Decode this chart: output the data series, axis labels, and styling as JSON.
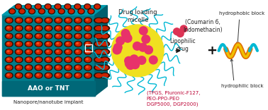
{
  "bg_color": "#ffffff",
  "implant_front_color": "#007b8a",
  "implant_top_color": "#009aac",
  "implant_side_color": "#005f6e",
  "implant_bottom_strip": "#006070",
  "pore_outer": "#2a1000",
  "pore_inner": "#cc2200",
  "pore_highlight": "#ff5522",
  "label_AAO": "AAO or TNT",
  "label_below": "Nanopore/nanotube implant",
  "label_AAO_color": "#ffffff",
  "label_below_color": "#222222",
  "micelle_label": "Drug loading\nmicelle",
  "micelle_label_color": "#222222",
  "yellow_color": "#f0e020",
  "pink_color": "#e8326a",
  "teal_color": "#00b8d4",
  "arrow_color": "#111111",
  "coumarin_label": "(Coumarin 6,\nIndomethacin)",
  "lipophilic_label": "Lipophilic\ndrug",
  "red_dot_color": "#dd3355",
  "plus_color": "#111111",
  "surfactant_label": "(TPGS, Pluronic-F127,\nPEO-PPO-PEO\nDGP5000, DGP2000)",
  "surfactant_color": "#bb0033",
  "hydrophobic_label": "hydrophobic block",
  "hydrophilic_label": "hydrophilic block",
  "label_color": "#222222",
  "orange_chain": "#e07000",
  "gold_chain": "#f0c000",
  "figsize": [
    3.78,
    1.56
  ],
  "dpi": 100
}
